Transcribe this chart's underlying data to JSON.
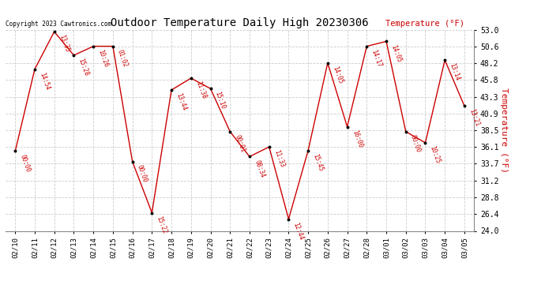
{
  "title": "Outdoor Temperature Daily High 20230306",
  "ylabel": "Temperature (°F)",
  "copyright": "Copyright 2023 Cawtronics.com",
  "bg_color": "#ffffff",
  "grid_color": "#cccccc",
  "line_color": "#cc0000",
  "marker_color": "#000000",
  "label_color": "#cc0000",
  "ylabel_color": "#cc0000",
  "dates": [
    "02/10",
    "02/11",
    "02/12",
    "02/13",
    "02/14",
    "02/15",
    "02/16",
    "02/17",
    "02/18",
    "02/19",
    "02/20",
    "02/21",
    "02/22",
    "02/23",
    "02/24",
    "02/25",
    "02/26",
    "02/27",
    "02/28",
    "03/01",
    "03/02",
    "03/03",
    "03/04",
    "03/05"
  ],
  "values": [
    35.5,
    47.3,
    52.7,
    49.3,
    50.6,
    50.6,
    34.0,
    26.6,
    44.3,
    46.0,
    44.5,
    38.3,
    34.7,
    36.1,
    25.7,
    35.6,
    48.2,
    39.0,
    50.6,
    51.3,
    38.3,
    36.7,
    48.6,
    42.0
  ],
  "time_labels": [
    "00:00",
    "14:54",
    "13:35",
    "15:28",
    "10:26",
    "01:02",
    "00:00",
    "15:22",
    "13:44",
    "11:38",
    "15:10",
    "00:01",
    "08:34",
    "11:33",
    "12:44",
    "15:45",
    "14:05",
    "16:00",
    "14:17",
    "14:05",
    "00:00",
    "10:25",
    "13:14",
    "13:21"
  ],
  "ylim": [
    24.0,
    53.0
  ],
  "yticks": [
    24.0,
    26.4,
    28.8,
    31.2,
    33.7,
    36.1,
    38.5,
    40.9,
    43.3,
    45.8,
    48.2,
    50.6,
    53.0
  ]
}
